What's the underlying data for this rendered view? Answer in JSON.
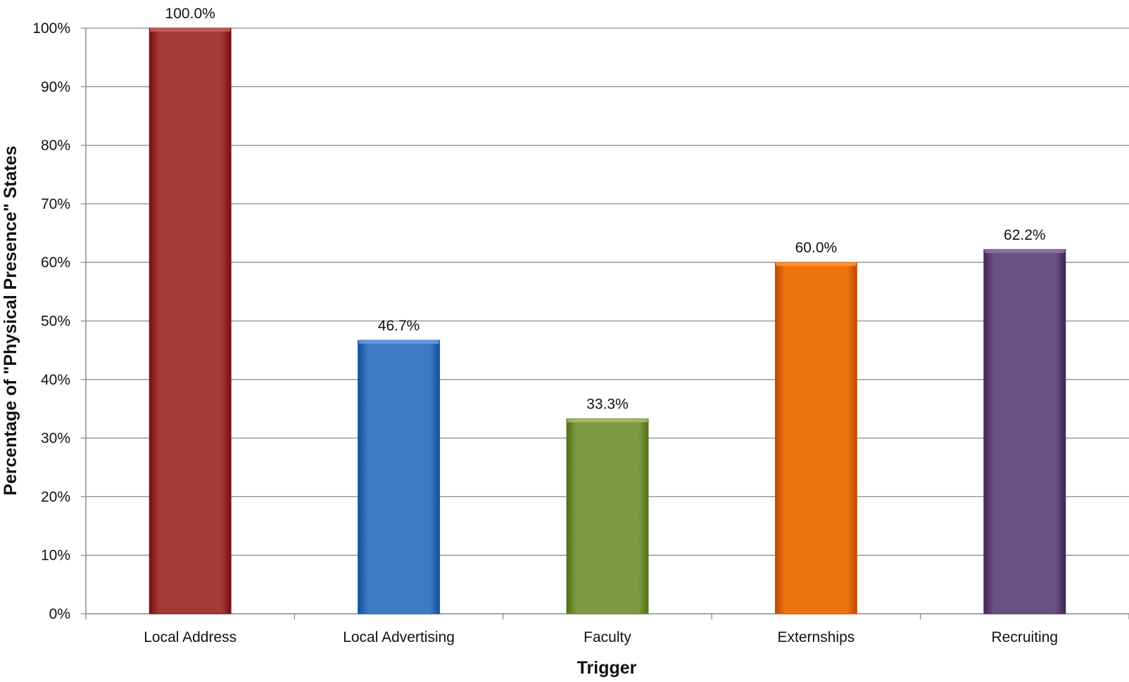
{
  "chart_data": {
    "type": "bar",
    "categories": [
      "Local Address",
      "Local Advertising",
      "Faculty",
      "Externships",
      "Recruiting"
    ],
    "values": [
      100.0,
      46.7,
      33.3,
      60.0,
      62.2
    ],
    "value_labels": [
      "100.0%",
      "46.7%",
      "33.3%",
      "60.0%",
      "62.2%"
    ],
    "colors": [
      "#A23B3A",
      "#3E7BC4",
      "#7F9B42",
      "#EE7411",
      "#6B5083"
    ],
    "xlabel": "Trigger",
    "ylabel": "Percentage of  \"Physical Presence\" States",
    "ylim": [
      0,
      100
    ],
    "yticks": [
      0,
      10,
      20,
      30,
      40,
      50,
      60,
      70,
      80,
      90,
      100
    ],
    "ytick_labels": [
      "0%",
      "10%",
      "20%",
      "30%",
      "40%",
      "50%",
      "60%",
      "70%",
      "80%",
      "90%",
      "100%"
    ],
    "grid": true,
    "legend": "none"
  }
}
